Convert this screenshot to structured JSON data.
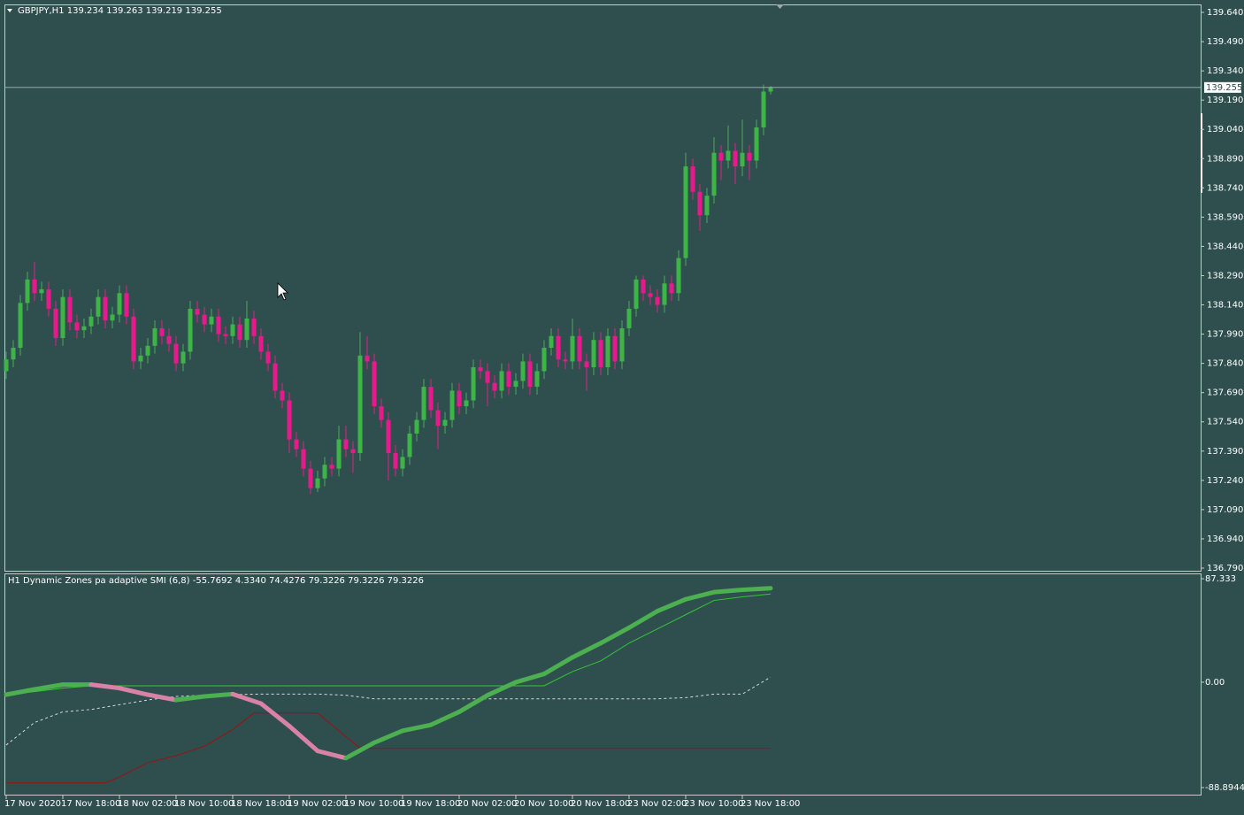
{
  "chart_data": [
    {
      "type": "candlestick",
      "title": "GBPJPY,H1  139.234 139.263 139.219 139.255",
      "open": [
        137.8,
        137.86,
        137.92,
        138.15,
        138.27,
        138.2,
        138.22,
        138.12,
        137.97,
        138.18,
        138.05,
        138.01,
        138.03,
        138.08,
        138.18,
        138.06,
        138.09,
        138.2,
        138.08,
        137.85,
        137.88,
        137.93,
        138.02,
        137.98,
        137.94,
        137.84,
        137.9,
        138.12,
        138.09,
        138.04,
        138.08,
        137.99,
        137.98,
        138.04,
        137.96,
        138.07,
        137.98,
        137.9,
        137.84,
        137.7,
        137.65,
        137.45,
        137.4,
        137.3,
        137.2,
        137.25,
        137.32,
        137.3,
        137.45,
        137.4,
        137.38,
        137.88,
        137.85,
        137.62,
        137.55,
        137.38,
        137.3,
        137.36,
        137.48,
        137.55,
        137.72,
        137.6,
        137.52,
        137.55,
        137.7,
        137.62,
        137.65,
        137.82,
        137.8,
        137.74,
        137.7,
        137.8,
        137.72,
        137.75,
        137.85,
        137.72,
        137.8,
        137.92,
        137.98,
        137.86,
        137.85,
        137.98,
        137.85,
        137.82,
        137.96,
        137.82,
        137.98,
        137.85,
        138.02,
        138.12,
        138.27,
        138.2,
        138.18,
        138.14,
        138.25,
        138.2,
        138.38,
        138.85,
        138.72,
        138.6,
        138.7,
        138.92,
        138.88,
        138.93,
        138.85,
        138.92,
        138.88,
        139.05,
        139.234
      ],
      "high": [
        137.9,
        137.96,
        138.19,
        138.31,
        138.36,
        138.26,
        138.26,
        138.16,
        138.22,
        138.22,
        138.09,
        138.07,
        138.12,
        138.22,
        138.22,
        138.13,
        138.24,
        138.24,
        138.12,
        137.92,
        137.97,
        138.06,
        138.06,
        138.02,
        137.98,
        137.94,
        138.16,
        138.16,
        138.13,
        138.12,
        138.12,
        138.03,
        138.08,
        138.08,
        138.16,
        138.11,
        138.02,
        137.94,
        137.88,
        137.74,
        137.69,
        137.49,
        137.44,
        137.34,
        137.29,
        137.36,
        137.36,
        137.52,
        137.52,
        137.44,
        138.0,
        137.98,
        137.89,
        137.66,
        137.59,
        137.42,
        137.4,
        137.52,
        137.59,
        137.76,
        137.76,
        137.64,
        137.59,
        137.74,
        137.74,
        137.69,
        137.86,
        137.86,
        137.84,
        137.78,
        137.84,
        137.84,
        137.79,
        137.89,
        137.89,
        137.84,
        137.96,
        138.02,
        138.02,
        137.9,
        138.07,
        138.02,
        137.89,
        138.0,
        138.0,
        138.02,
        138.02,
        138.06,
        138.16,
        138.29,
        138.29,
        138.24,
        138.22,
        138.29,
        138.29,
        138.42,
        138.92,
        138.89,
        138.76,
        138.74,
        139.0,
        138.96,
        139.06,
        138.97,
        139.09,
        138.96,
        139.09,
        139.27,
        139.263
      ],
      "low": [
        137.76,
        137.82,
        137.88,
        138.11,
        138.16,
        138.16,
        138.08,
        137.93,
        137.93,
        138.01,
        137.97,
        137.97,
        137.99,
        138.04,
        138.02,
        138.02,
        138.05,
        138.04,
        137.81,
        137.81,
        137.84,
        137.89,
        137.94,
        137.9,
        137.8,
        137.8,
        137.86,
        138.05,
        138.0,
        138.0,
        137.95,
        137.94,
        137.94,
        137.92,
        137.92,
        137.94,
        137.86,
        137.8,
        137.66,
        137.61,
        137.38,
        137.36,
        137.26,
        137.17,
        137.18,
        137.21,
        137.26,
        137.26,
        137.36,
        137.28,
        137.34,
        137.81,
        137.58,
        137.51,
        137.24,
        137.26,
        137.26,
        137.32,
        137.44,
        137.51,
        137.56,
        137.4,
        137.48,
        137.51,
        137.58,
        137.58,
        137.61,
        137.76,
        137.62,
        137.66,
        137.66,
        137.68,
        137.68,
        137.71,
        137.68,
        137.68,
        137.76,
        137.88,
        137.82,
        137.81,
        137.81,
        137.81,
        137.7,
        137.78,
        137.78,
        137.78,
        137.81,
        137.81,
        137.98,
        138.08,
        138.16,
        138.14,
        138.1,
        138.1,
        138.16,
        138.16,
        138.34,
        138.68,
        138.52,
        138.56,
        138.66,
        138.78,
        138.84,
        138.76,
        138.8,
        138.78,
        138.84,
        139.01,
        139.219
      ],
      "close": [
        137.86,
        137.92,
        138.15,
        138.27,
        138.2,
        138.22,
        138.12,
        137.97,
        138.18,
        138.05,
        138.01,
        138.03,
        138.08,
        138.18,
        138.06,
        138.09,
        138.2,
        138.08,
        137.85,
        137.88,
        137.93,
        138.02,
        137.98,
        137.94,
        137.84,
        137.9,
        138.12,
        138.09,
        138.04,
        138.08,
        137.99,
        137.98,
        138.04,
        137.96,
        138.07,
        137.98,
        137.9,
        137.84,
        137.7,
        137.65,
        137.45,
        137.4,
        137.3,
        137.2,
        137.25,
        137.32,
        137.3,
        137.45,
        137.4,
        137.38,
        137.88,
        137.85,
        137.62,
        137.55,
        137.38,
        137.3,
        137.36,
        137.48,
        137.55,
        137.72,
        137.6,
        137.52,
        137.55,
        137.7,
        137.62,
        137.65,
        137.82,
        137.8,
        137.74,
        137.7,
        137.8,
        137.72,
        137.75,
        137.85,
        137.72,
        137.8,
        137.92,
        137.98,
        137.86,
        137.85,
        137.98,
        137.85,
        137.82,
        137.96,
        137.82,
        137.98,
        137.85,
        138.02,
        138.12,
        138.27,
        138.2,
        138.18,
        138.14,
        138.25,
        138.2,
        138.38,
        138.85,
        138.72,
        138.6,
        138.7,
        138.92,
        138.88,
        138.93,
        138.85,
        138.92,
        138.88,
        139.05,
        139.234,
        139.255
      ],
      "up_color": "#3fb34a",
      "down_color": "#e8198b",
      "last_price": 139.255,
      "ylim": [
        136.79,
        139.64
      ],
      "yticks": [
        {
          "value": 139.64,
          "label": "139.640"
        },
        {
          "value": 139.49,
          "label": "139.490"
        },
        {
          "value": 139.34,
          "label": "139.340"
        },
        {
          "value": 139.19,
          "label": "139.190"
        },
        {
          "value": 139.04,
          "label": "139.040"
        },
        {
          "value": 138.89,
          "label": "138.890"
        },
        {
          "value": 138.74,
          "label": "138.740"
        },
        {
          "value": 138.59,
          "label": "138.590"
        },
        {
          "value": 138.44,
          "label": "138.440"
        },
        {
          "value": 138.29,
          "label": "138.290"
        },
        {
          "value": 138.14,
          "label": "138.140"
        },
        {
          "value": 137.99,
          "label": "137.990"
        },
        {
          "value": 137.84,
          "label": "137.840"
        },
        {
          "value": 137.69,
          "label": "137.690"
        },
        {
          "value": 137.54,
          "label": "137.540"
        },
        {
          "value": 137.39,
          "label": "137.390"
        },
        {
          "value": 137.24,
          "label": "137.240"
        },
        {
          "value": 137.09,
          "label": "137.090"
        },
        {
          "value": 136.94,
          "label": "136.940"
        },
        {
          "value": 136.79,
          "label": "136.790"
        }
      ],
      "xticks": [
        {
          "value": 0,
          "label": "17 Nov 2020"
        },
        {
          "value": 8,
          "label": "17 Nov 18:00"
        },
        {
          "value": 16,
          "label": "18 Nov 02:00"
        },
        {
          "value": 24,
          "label": "18 Nov 10:00"
        },
        {
          "value": 32,
          "label": "18 Nov 18:00"
        },
        {
          "value": 40,
          "label": "19 Nov 02:00"
        },
        {
          "value": 48,
          "label": "19 Nov 10:00"
        },
        {
          "value": 56,
          "label": "19 Nov 18:00"
        },
        {
          "value": 64,
          "label": "20 Nov 02:00"
        },
        {
          "value": 72,
          "label": "20 Nov 10:00"
        },
        {
          "value": 80,
          "label": "20 Nov 18:00"
        },
        {
          "value": 88,
          "label": "23 Nov 02:00"
        },
        {
          "value": 96,
          "label": "23 Nov 10:00"
        },
        {
          "value": 104,
          "label": "23 Nov 18:00"
        }
      ]
    },
    {
      "type": "line",
      "title": "H1 Dynamic Zones pa adaptive SMI (6,8) -55.7692 4.3340 74.4276 79.3226 79.3226 79.3226",
      "ylim": [
        -88.8944,
        87.333
      ],
      "yticks": [
        87.333,
        {
          "value": 0,
          "label": "0.00"
        },
        -88.8944
      ],
      "series": [
        {
          "color": "#8b1a1a",
          "style": "solid",
          "width": 1.2,
          "x": [
            0,
            14,
            16,
            20,
            24,
            28,
            32,
            35,
            44,
            48,
            50,
            108
          ],
          "values": [
            -85,
            -85,
            -80,
            -68,
            -62,
            -54,
            -40,
            -26,
            -26,
            -46,
            -55.7692,
            -55.7692
          ]
        },
        {
          "color": "#d8d8d8",
          "style": "dashed",
          "width": 1,
          "x": [
            0,
            4,
            8,
            12,
            16,
            20,
            24,
            28,
            32,
            36,
            44,
            48,
            52,
            92,
            96,
            100,
            104,
            108
          ],
          "values": [
            -53,
            -34,
            -25,
            -23,
            -19,
            -15,
            -12,
            -11,
            -10.5,
            -10,
            -10,
            -11,
            -14,
            -14,
            -13,
            -10,
            -10,
            4.334
          ]
        },
        {
          "color": "#32c832",
          "style": "solid",
          "width": 1,
          "x": [
            0,
            4,
            8,
            12,
            76,
            80,
            84,
            88,
            92,
            96,
            100,
            104,
            108
          ],
          "values": [
            -10.5,
            -8,
            -5,
            -3,
            -3,
            9,
            18,
            33,
            45,
            57,
            69,
            72,
            74.4276
          ]
        },
        {
          "color": "#4caf50",
          "down_color": "#d982a6",
          "style": "solid",
          "width": 5,
          "x": [
            0,
            4,
            8,
            12,
            16,
            20,
            24,
            28,
            32,
            36,
            40,
            44,
            48,
            52,
            56,
            60,
            64,
            68,
            72,
            76,
            80,
            84,
            88,
            92,
            96,
            100,
            104,
            108
          ],
          "values": [
            -10.5,
            -6,
            -2,
            -2,
            -5,
            -10.5,
            -15,
            -12,
            -10,
            -18,
            -37,
            -58,
            -64,
            -51,
            -41,
            -36,
            -25,
            -11,
            0,
            7,
            21,
            33,
            46,
            60,
            70,
            76,
            78,
            79.3226
          ]
        }
      ]
    }
  ]
}
